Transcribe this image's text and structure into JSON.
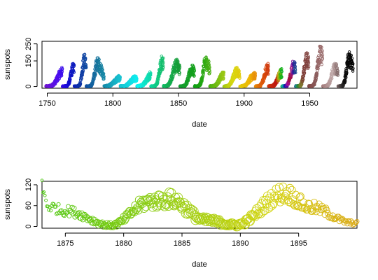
{
  "chart_data": [
    {
      "type": "scatter",
      "title": "",
      "xlabel": "date",
      "ylabel": "sunspots",
      "xlim": [
        1746,
        1986
      ],
      "ylim": [
        -10,
        265
      ],
      "xticks": [
        1750,
        1800,
        1850,
        1900,
        1950
      ],
      "yticks": [
        0,
        150,
        250
      ],
      "xtick_labels": [
        "1750",
        "1800",
        "1850",
        "1900",
        "1950"
      ],
      "ytick_labels": [
        "0",
        "150",
        "250"
      ],
      "grid": false,
      "legend": "none",
      "marker": "open-circle",
      "color_encoding": "rainbow by decade (purple → blue → teal → cyan → green → yellow → orange → red → brown → pink/grey → black)",
      "monthly_series": {
        "start_year": 1749,
        "end_year": 1983,
        "cycles": [
          {
            "min_year": 1755.2,
            "max_year": 1761.5,
            "peak": 86
          },
          {
            "min_year": 1766.5,
            "max_year": 1769.7,
            "peak": 106
          },
          {
            "min_year": 1775.5,
            "max_year": 1778.4,
            "peak": 154
          },
          {
            "min_year": 1784.7,
            "max_year": 1788.1,
            "peak": 132
          },
          {
            "min_year": 1798.3,
            "max_year": 1805.2,
            "peak": 48
          },
          {
            "min_year": 1810.6,
            "max_year": 1816.4,
            "peak": 46
          },
          {
            "min_year": 1823.3,
            "max_year": 1829.9,
            "peak": 71
          },
          {
            "min_year": 1833.9,
            "max_year": 1837.2,
            "peak": 138
          },
          {
            "min_year": 1843.5,
            "max_year": 1848.1,
            "peak": 124
          },
          {
            "min_year": 1856.0,
            "max_year": 1860.1,
            "peak": 96
          },
          {
            "min_year": 1867.2,
            "max_year": 1870.6,
            "peak": 139
          },
          {
            "min_year": 1878.9,
            "max_year": 1883.9,
            "peak": 64
          },
          {
            "min_year": 1889.6,
            "max_year": 1894.1,
            "peak": 85
          },
          {
            "min_year": 1901.7,
            "max_year": 1907.0,
            "peak": 62
          },
          {
            "min_year": 1913.6,
            "max_year": 1917.6,
            "peak": 104
          },
          {
            "min_year": 1923.6,
            "max_year": 1928.4,
            "peak": 78
          },
          {
            "min_year": 1933.8,
            "max_year": 1937.4,
            "peak": 114
          },
          {
            "min_year": 1944.2,
            "max_year": 1947.5,
            "peak": 152
          },
          {
            "min_year": 1954.3,
            "max_year": 1957.9,
            "peak": 190
          },
          {
            "min_year": 1964.9,
            "max_year": 1968.9,
            "peak": 106
          },
          {
            "min_year": 1976.5,
            "max_year": 1979.9,
            "peak": 155
          }
        ]
      }
    },
    {
      "type": "scatter",
      "title": "",
      "xlabel": "date",
      "ylabel": "sunspots",
      "xlim": [
        1873,
        1900
      ],
      "ylim": [
        -5,
        130
      ],
      "xticks": [
        1875,
        1880,
        1885,
        1890,
        1895
      ],
      "yticks": [
        0,
        60,
        120
      ],
      "xtick_labels": [
        "1875",
        "1880",
        "1885",
        "1890",
        "1895"
      ],
      "ytick_labels": [
        "0",
        "60",
        "120"
      ],
      "grid": false,
      "legend": "none",
      "marker": "open-circle, size scaled by time index",
      "color_encoding": "green → yellow-green → yellow → gold along time",
      "monthly_series": {
        "start_year": 1873,
        "end_year": 1900,
        "segments": [
          {
            "from": 1873.0,
            "to": 1873.5,
            "y0": 110,
            "y1": 58
          },
          {
            "from": 1873.5,
            "to": 1875.0,
            "y0": 58,
            "y1": 45
          },
          {
            "from": 1875.0,
            "to": 1878.9,
            "y0": 45,
            "y1": 3
          },
          {
            "from": 1878.9,
            "to": 1882.3,
            "y0": 3,
            "y1": 72
          },
          {
            "from": 1882.3,
            "to": 1884.0,
            "y0": 72,
            "y1": 78
          },
          {
            "from": 1884.0,
            "to": 1887.0,
            "y0": 78,
            "y1": 18
          },
          {
            "from": 1887.0,
            "to": 1889.6,
            "y0": 18,
            "y1": 4
          },
          {
            "from": 1889.6,
            "to": 1893.8,
            "y0": 4,
            "y1": 95
          },
          {
            "from": 1893.8,
            "to": 1896.0,
            "y0": 95,
            "y1": 55
          },
          {
            "from": 1896.0,
            "to": 1899.6,
            "y0": 55,
            "y1": 10
          }
        ]
      }
    }
  ]
}
